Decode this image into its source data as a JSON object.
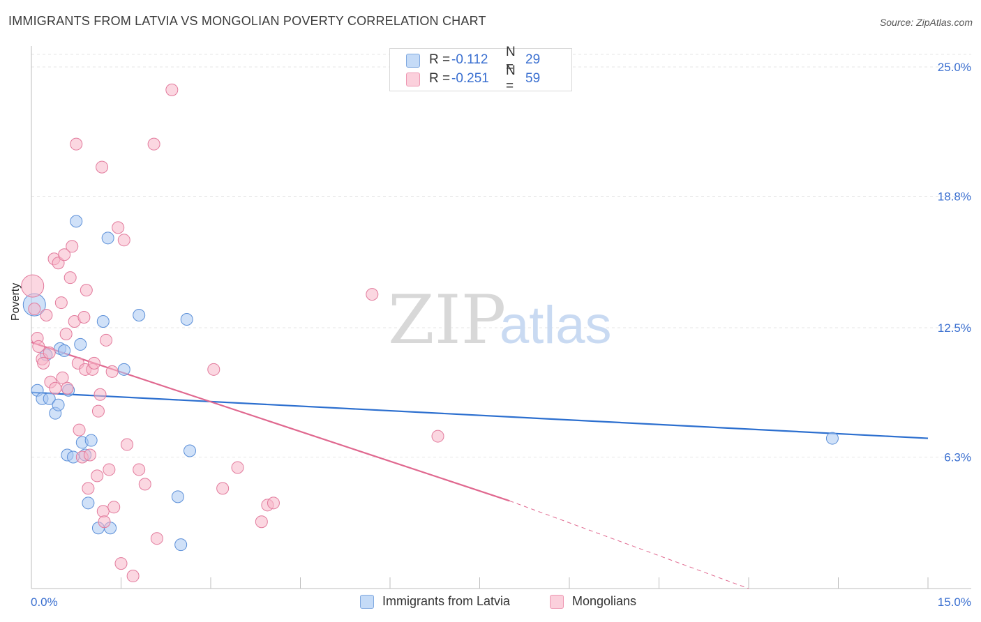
{
  "title": "IMMIGRANTS FROM LATVIA VS MONGOLIAN POVERTY CORRELATION CHART",
  "source": "Source: ZipAtlas.com",
  "watermark": {
    "zip": "ZIP",
    "atlas": "atlas"
  },
  "legend_top": [
    {
      "r_label": "R =",
      "r_value": "-0.112",
      "n_label": "N =",
      "n_value": "29",
      "color": "#a9c8f3"
    },
    {
      "r_label": "R =",
      "r_value": "-0.251",
      "n_label": "N =",
      "n_value": "59",
      "color": "#f7b6c9"
    }
  ],
  "legend_bottom": [
    {
      "label": "Immigrants from Latvia",
      "color": "#a9c8f3"
    },
    {
      "label": "Mongolians",
      "color": "#f7b6c9"
    }
  ],
  "chart_data": {
    "type": "scatter",
    "title": "IMMIGRANTS FROM LATVIA VS MONGOLIAN POVERTY CORRELATION CHART",
    "xlabel": "",
    "ylabel": "Poverty",
    "xlim": [
      0,
      15
    ],
    "ylim": [
      0,
      25.6
    ],
    "x_tick_labels": [
      "0.0%",
      "15.0%"
    ],
    "y_ticks": [
      6.3,
      12.5,
      18.8,
      25.0
    ],
    "y_tick_labels": [
      "6.3%",
      "12.5%",
      "18.8%",
      "25.0%"
    ],
    "grid": true,
    "legend_position": "top-center",
    "series": [
      {
        "name": "Immigrants from Latvia",
        "color": "#a9c8f3",
        "stroke": "#5b8fd8",
        "trend_color": "#2c6fcf",
        "trend": {
          "x0": 0,
          "y0": 9.4,
          "x1": 15,
          "y1": 7.2
        },
        "points": [
          [
            0.05,
            13.6
          ],
          [
            0.1,
            9.5
          ],
          [
            0.18,
            9.1
          ],
          [
            0.25,
            11.2
          ],
          [
            0.3,
            9.1
          ],
          [
            0.4,
            8.4
          ],
          [
            0.48,
            11.5
          ],
          [
            0.55,
            11.4
          ],
          [
            0.6,
            6.4
          ],
          [
            0.62,
            9.5
          ],
          [
            0.7,
            6.3
          ],
          [
            0.75,
            17.6
          ],
          [
            0.82,
            11.7
          ],
          [
            0.85,
            7.0
          ],
          [
            0.95,
            4.1
          ],
          [
            1.0,
            7.1
          ],
          [
            1.12,
            2.9
          ],
          [
            1.2,
            12.8
          ],
          [
            1.28,
            16.8
          ],
          [
            1.32,
            2.9
          ],
          [
            1.55,
            10.5
          ],
          [
            1.8,
            13.1
          ],
          [
            2.6,
            12.9
          ],
          [
            2.65,
            6.6
          ],
          [
            2.5,
            2.1
          ],
          [
            13.4,
            7.2
          ],
          [
            0.45,
            8.8
          ],
          [
            0.9,
            6.4
          ],
          [
            2.45,
            4.4
          ]
        ]
      },
      {
        "name": "Mongolians",
        "color": "#f7b6c9",
        "stroke": "#e27a9c",
        "trend_color": "#e0688f",
        "trend": {
          "x0": 0,
          "y0": 11.8,
          "x1": 8.0,
          "y1": 4.2
        },
        "trend_dashed": {
          "x0": 8.0,
          "y0": 4.2,
          "x1": 12.0,
          "y1": 0.0
        },
        "points": [
          [
            0.02,
            14.5
          ],
          [
            0.05,
            13.4
          ],
          [
            0.1,
            12.0
          ],
          [
            0.12,
            11.6
          ],
          [
            0.18,
            11.0
          ],
          [
            0.2,
            10.8
          ],
          [
            0.25,
            13.1
          ],
          [
            0.3,
            11.3
          ],
          [
            0.32,
            9.9
          ],
          [
            0.38,
            15.8
          ],
          [
            0.4,
            9.6
          ],
          [
            0.45,
            15.6
          ],
          [
            0.5,
            13.7
          ],
          [
            0.52,
            10.1
          ],
          [
            0.55,
            16.0
          ],
          [
            0.58,
            12.2
          ],
          [
            0.6,
            9.6
          ],
          [
            0.65,
            14.9
          ],
          [
            0.68,
            16.4
          ],
          [
            0.72,
            12.8
          ],
          [
            0.75,
            21.3
          ],
          [
            0.78,
            10.8
          ],
          [
            0.8,
            7.6
          ],
          [
            0.85,
            6.3
          ],
          [
            0.88,
            13.0
          ],
          [
            0.9,
            10.5
          ],
          [
            0.92,
            14.3
          ],
          [
            0.95,
            4.8
          ],
          [
            0.98,
            6.4
          ],
          [
            1.02,
            10.5
          ],
          [
            1.05,
            10.8
          ],
          [
            1.1,
            5.4
          ],
          [
            1.12,
            8.5
          ],
          [
            1.15,
            9.3
          ],
          [
            1.18,
            20.2
          ],
          [
            1.2,
            3.7
          ],
          [
            1.22,
            3.2
          ],
          [
            1.25,
            11.9
          ],
          [
            1.3,
            5.7
          ],
          [
            1.35,
            10.4
          ],
          [
            1.38,
            3.9
          ],
          [
            1.45,
            17.3
          ],
          [
            1.5,
            1.2
          ],
          [
            1.55,
            16.7
          ],
          [
            1.6,
            6.9
          ],
          [
            1.7,
            0.6
          ],
          [
            1.8,
            5.7
          ],
          [
            1.9,
            5.0
          ],
          [
            2.05,
            21.3
          ],
          [
            2.1,
            2.4
          ],
          [
            2.35,
            23.9
          ],
          [
            3.05,
            10.5
          ],
          [
            3.2,
            4.8
          ],
          [
            3.45,
            5.8
          ],
          [
            3.85,
            3.2
          ],
          [
            3.95,
            4.0
          ],
          [
            4.05,
            4.1
          ],
          [
            5.7,
            14.1
          ],
          [
            6.8,
            7.3
          ]
        ]
      }
    ]
  }
}
